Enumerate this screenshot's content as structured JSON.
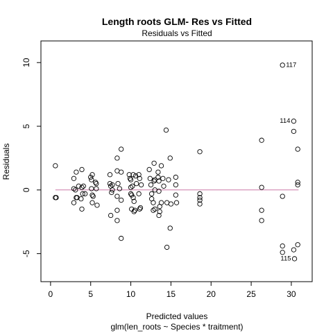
{
  "chart_data": {
    "type": "scatter",
    "title": "Length roots GLM- Res vs Fitted",
    "subtitle": "Residuals vs Fitted",
    "xlabel": "Predicted values",
    "xsublabel": "glm(len_roots ~ Species * traitment)",
    "ylabel": "Residuals",
    "xlim": [
      -1.2,
      32.6
    ],
    "ylim": [
      -7.2,
      11.7
    ],
    "xticks": [
      0,
      5,
      10,
      15,
      20,
      25,
      30
    ],
    "yticks": [
      -5,
      0,
      5,
      10
    ],
    "grid": false,
    "reference_line": {
      "y": 0,
      "color": "#cc79a7"
    },
    "point_color": "#000000",
    "points": [
      [
        0.6,
        1.9
      ],
      [
        0.6,
        -0.6
      ],
      [
        0.7,
        -0.6
      ],
      [
        2.9,
        0.9
      ],
      [
        2.9,
        0.1
      ],
      [
        2.9,
        -1.0
      ],
      [
        3.1,
        0.0
      ],
      [
        3.2,
        1.4
      ],
      [
        3.2,
        -0.6
      ],
      [
        3.3,
        -0.6
      ],
      [
        3.5,
        0.3
      ],
      [
        3.8,
        -0.7
      ],
      [
        3.9,
        1.6
      ],
      [
        3.9,
        0.2
      ],
      [
        3.9,
        -1.5
      ],
      [
        4.0,
        -0.3
      ],
      [
        4.1,
        0.3
      ],
      [
        4.3,
        -0.3
      ],
      [
        5.0,
        1.0
      ],
      [
        5.1,
        0.8
      ],
      [
        5.1,
        0.1
      ],
      [
        5.2,
        1.2
      ],
      [
        5.2,
        -0.4
      ],
      [
        5.3,
        -0.5
      ],
      [
        5.2,
        -1.0
      ],
      [
        5.6,
        0.6
      ],
      [
        5.7,
        0.1
      ],
      [
        5.8,
        -1.2
      ],
      [
        5.7,
        0.5
      ],
      [
        7.4,
        1.2
      ],
      [
        7.4,
        0.5
      ],
      [
        7.5,
        0.3
      ],
      [
        7.5,
        -2.0
      ],
      [
        7.6,
        -0.2
      ],
      [
        7.7,
        0.4
      ],
      [
        7.7,
        0.0
      ],
      [
        8.3,
        2.5
      ],
      [
        8.3,
        1.5
      ],
      [
        8.4,
        0.5
      ],
      [
        8.3,
        -0.5
      ],
      [
        8.3,
        -1.6
      ],
      [
        8.3,
        -2.4
      ],
      [
        8.6,
        0.1
      ],
      [
        8.8,
        3.2
      ],
      [
        8.8,
        -0.8
      ],
      [
        8.8,
        1.4
      ],
      [
        8.8,
        -3.8
      ],
      [
        9.8,
        1.2
      ],
      [
        9.9,
        0.9
      ],
      [
        10.0,
        0.8
      ],
      [
        10.0,
        0.2
      ],
      [
        10.0,
        -0.3
      ],
      [
        10.1,
        -0.4
      ],
      [
        10.1,
        -1.5
      ],
      [
        10.2,
        0.3
      ],
      [
        10.3,
        1.2
      ],
      [
        10.3,
        -0.6
      ],
      [
        10.4,
        -0.9
      ],
      [
        10.4,
        -1.7
      ],
      [
        10.5,
        -1.6
      ],
      [
        10.6,
        1.1
      ],
      [
        10.7,
        0.5
      ],
      [
        11.0,
        1.2
      ],
      [
        11.0,
        -0.3
      ],
      [
        11.1,
        0.9
      ],
      [
        11.1,
        -1.5
      ],
      [
        11.2,
        -1.4
      ],
      [
        11.3,
        0.4
      ],
      [
        12.3,
        1.6
      ],
      [
        12.4,
        0.9
      ],
      [
        12.5,
        0.4
      ],
      [
        12.6,
        -0.3
      ],
      [
        12.6,
        -0.7
      ],
      [
        12.8,
        -1.0
      ],
      [
        12.8,
        -1.6
      ],
      [
        12.9,
        2.1
      ],
      [
        12.9,
        0.7
      ],
      [
        13.0,
        0.8
      ],
      [
        13.0,
        -1.5
      ],
      [
        13.0,
        0.0
      ],
      [
        13.4,
        1.4
      ],
      [
        13.4,
        1.0
      ],
      [
        13.5,
        0.7
      ],
      [
        13.5,
        -0.1
      ],
      [
        13.5,
        -2.0
      ],
      [
        13.6,
        -1.7
      ],
      [
        13.6,
        -1.3
      ],
      [
        13.8,
        1.9
      ],
      [
        13.8,
        -1.0
      ],
      [
        14.0,
        0.9
      ],
      [
        14.1,
        0.3
      ],
      [
        14.4,
        4.7
      ],
      [
        14.5,
        -1.0
      ],
      [
        14.5,
        -4.5
      ],
      [
        14.7,
        0.8
      ],
      [
        14.9,
        2.5
      ],
      [
        14.9,
        -3.0
      ],
      [
        15.0,
        -1.1
      ],
      [
        15.6,
        1.0
      ],
      [
        15.6,
        0.4
      ],
      [
        15.6,
        -0.4
      ],
      [
        15.7,
        -1.0
      ],
      [
        18.6,
        3.0
      ],
      [
        18.6,
        -0.3
      ],
      [
        18.6,
        -0.6
      ],
      [
        18.6,
        -0.8
      ],
      [
        18.6,
        -1.1
      ],
      [
        26.3,
        3.9
      ],
      [
        26.3,
        0.2
      ],
      [
        26.3,
        -1.6
      ],
      [
        26.3,
        -2.4
      ],
      [
        28.9,
        9.8
      ],
      [
        28.9,
        -0.5
      ],
      [
        28.9,
        -4.4
      ],
      [
        28.9,
        -4.9
      ],
      [
        30.3,
        5.4
      ],
      [
        30.3,
        4.6
      ],
      [
        30.3,
        -4.7
      ],
      [
        30.4,
        -5.4
      ],
      [
        30.8,
        3.2
      ],
      [
        30.8,
        0.6
      ],
      [
        30.8,
        0.4
      ],
      [
        30.8,
        -4.3
      ]
    ],
    "annotations": [
      {
        "label": "117",
        "x": 28.9,
        "y": 9.8,
        "side": "right"
      },
      {
        "label": "114",
        "x": 30.3,
        "y": 5.4,
        "side": "left"
      },
      {
        "label": "115",
        "x": 30.4,
        "y": -5.4,
        "side": "left"
      }
    ]
  }
}
